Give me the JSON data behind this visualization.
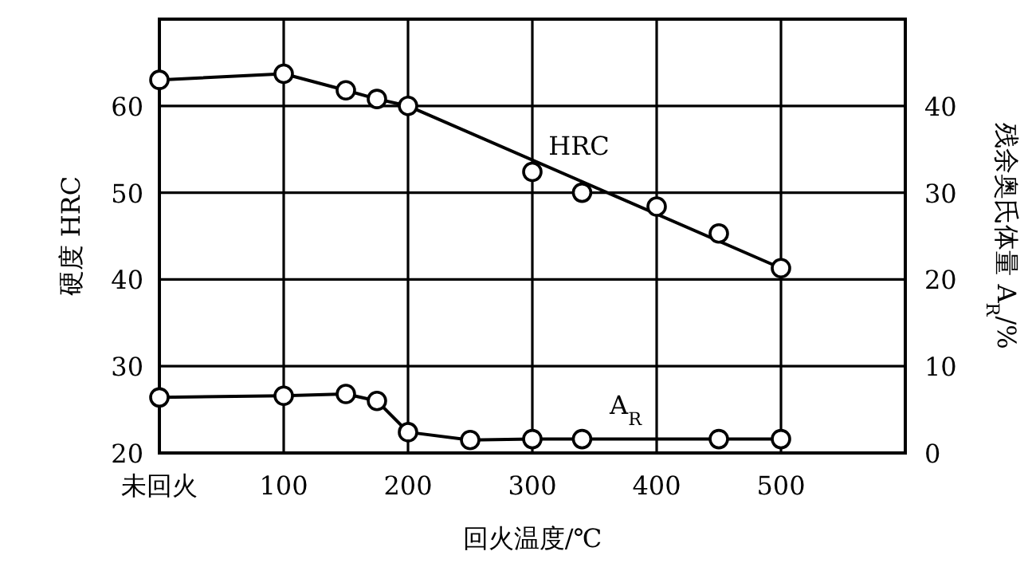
{
  "chart_data": {
    "type": "line",
    "xlabel": "回火温度/℃",
    "ylabel": "硬度 HRC",
    "y2label": "残余奥氏体量 A$_{R}$/%",
    "xlim": [
      0,
      600
    ],
    "xticks": [
      {
        "value": 0,
        "label": "未回火"
      },
      100,
      200,
      300,
      400,
      500
    ],
    "ylim": [
      20,
      70
    ],
    "yticks": [
      20,
      30,
      40,
      50,
      60
    ],
    "y2lim": [
      0,
      50
    ],
    "y2ticks": [
      0,
      10,
      20,
      30,
      40
    ],
    "grid": true,
    "marker": "circle",
    "line_style": "solid",
    "series": [
      {
        "name": "HRC",
        "color": "#000000",
        "x": [
          0,
          100,
          150,
          175,
          200,
          500
        ],
        "values": [
          63,
          63.7,
          61.8,
          60.8,
          60,
          41.3
        ]
      },
      {
        "type": "scatter",
        "color": "#000000",
        "x": [
          300,
          340,
          400,
          450
        ],
        "values": [
          52.4,
          50,
          48.4,
          45.3
        ]
      },
      {
        "name": "A$_{R}$",
        "axis": "y2",
        "color": "#000000",
        "x": [
          0,
          100,
          150,
          175,
          200,
          250,
          300,
          340,
          450,
          500
        ],
        "values": [
          6.4,
          6.6,
          6.8,
          6,
          2.4,
          1.5,
          1.6,
          1.6,
          1.6,
          1.6
        ]
      }
    ]
  }
}
